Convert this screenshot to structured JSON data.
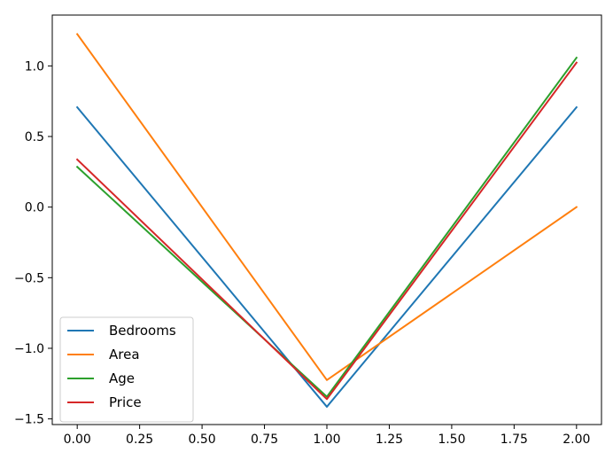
{
  "chart_data": {
    "type": "line",
    "title": "",
    "xlabel": "",
    "ylabel": "",
    "x": [
      0.0,
      1.0,
      2.0
    ],
    "xlim": [
      -0.1,
      2.1
    ],
    "ylim": [
      -1.54,
      1.36
    ],
    "xticks": [
      0.0,
      0.25,
      0.5,
      0.75,
      1.0,
      1.25,
      1.5,
      1.75,
      2.0
    ],
    "xtick_labels": [
      "0.00",
      "0.25",
      "0.50",
      "0.75",
      "1.00",
      "1.25",
      "1.50",
      "1.75",
      "2.00"
    ],
    "yticks": [
      -1.5,
      -1.0,
      -0.5,
      0.0,
      0.5,
      1.0
    ],
    "ytick_labels": [
      "−1.5",
      "−1.0",
      "−0.5",
      "0.0",
      "0.5",
      "1.0"
    ],
    "grid": false,
    "legend_position": "lower-left",
    "series": [
      {
        "name": "Bedrooms",
        "color": "#1f77b4",
        "values": [
          0.707,
          -1.414,
          0.707
        ]
      },
      {
        "name": "Area",
        "color": "#ff7f0e",
        "values": [
          1.225,
          -1.225,
          0.0
        ]
      },
      {
        "name": "Age",
        "color": "#2ca02c",
        "values": [
          0.285,
          -1.343,
          1.058
        ]
      },
      {
        "name": "Price",
        "color": "#d62728",
        "values": [
          0.337,
          -1.36,
          1.023
        ]
      }
    ]
  }
}
